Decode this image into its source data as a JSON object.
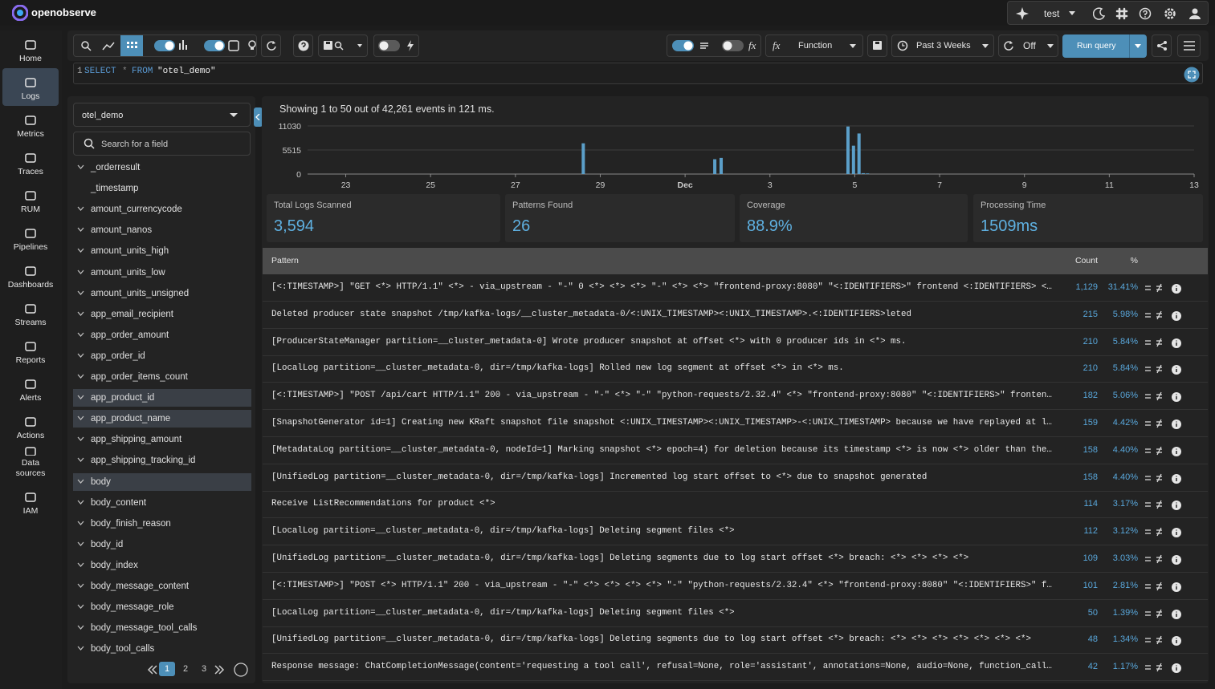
{
  "header": {
    "brand": "openobserve",
    "org": "test"
  },
  "nav": [
    "Home",
    "Logs",
    "Metrics",
    "Traces",
    "RUM",
    "Pipelines",
    "Dashboards",
    "Streams",
    "Reports",
    "Alerts",
    "Actions",
    "Data sources",
    "IAM"
  ],
  "toolbar": {
    "fx": "fx",
    "function": "Function",
    "time_range": "Past 3 Weeks",
    "refresh": "Off",
    "run": "Run query"
  },
  "query": {
    "line_number": 1,
    "tokens": [
      "SELECT",
      "*",
      "FROM",
      "\"otel_demo\""
    ]
  },
  "sidebar": {
    "stream": "otel_demo",
    "search_placeholder": "Search for a field",
    "fields": [
      {
        "name": "_orderresult"
      },
      {
        "name": "_timestamp",
        "expandable": false
      },
      {
        "name": "amount_currencycode"
      },
      {
        "name": "amount_nanos"
      },
      {
        "name": "amount_units_high"
      },
      {
        "name": "amount_units_low"
      },
      {
        "name": "amount_units_unsigned"
      },
      {
        "name": "app_email_recipient"
      },
      {
        "name": "app_order_amount"
      },
      {
        "name": "app_order_id"
      },
      {
        "name": "app_order_items_count"
      },
      {
        "name": "app_product_id",
        "selected": true
      },
      {
        "name": "app_product_name",
        "selected": true
      },
      {
        "name": "app_shipping_amount"
      },
      {
        "name": "app_shipping_tracking_id"
      },
      {
        "name": "body",
        "selected": true
      },
      {
        "name": "body_content"
      },
      {
        "name": "body_finish_reason"
      },
      {
        "name": "body_id"
      },
      {
        "name": "body_index"
      },
      {
        "name": "body_message_content"
      },
      {
        "name": "body_message_role"
      },
      {
        "name": "body_message_tool_calls"
      },
      {
        "name": "body_tool_calls"
      }
    ],
    "pages": [
      1,
      2,
      3
    ],
    "current_page": 1
  },
  "summary": "Showing 1 to 50 out of 42,261 events in 121 ms.",
  "chart_data": {
    "type": "bar",
    "x": [
      28.6,
      31.7,
      31.85,
      34.84,
      34.97,
      35.1,
      35.2,
      35.3
    ],
    "values": [
      7050,
      3400,
      3700,
      10900,
      6500,
      9300,
      200,
      150
    ],
    "color": "#5b9fc9",
    "xlim": [
      22.1,
      43
    ],
    "xticks": [
      23,
      25,
      27,
      29,
      {
        "value": 31,
        "label": "Dec"
      },
      {
        "value": 33,
        "label": "3"
      },
      {
        "value": 35,
        "label": "5"
      },
      {
        "value": 37,
        "label": "7"
      },
      {
        "value": 39,
        "label": "9"
      },
      {
        "value": 41,
        "label": "11"
      },
      {
        "value": 43,
        "label": "13"
      }
    ],
    "ylim": [
      0,
      11030
    ],
    "yticks": [
      0,
      5515,
      11030
    ],
    "grid": true
  },
  "stats": [
    {
      "label": "Total Logs Scanned",
      "value": "3,594"
    },
    {
      "label": "Patterns Found",
      "value": "26"
    },
    {
      "label": "Coverage",
      "value": "88.9%"
    },
    {
      "label": "Processing Time",
      "value": "1509ms"
    }
  ],
  "table": {
    "columns": [
      "Pattern",
      "Count",
      "%"
    ],
    "rows": [
      [
        "[<:TIMESTAMP>] \"GET <*> HTTP/1.1\" <*> - via_upstream - \"-\" 0 <*> <*> <*> \"-\" <*> <*> \"frontend-proxy:8080\" \"<:IDENTIFIERS>\" frontend <:IDENTIFIERS> <…",
        "1,129",
        "31.41%"
      ],
      [
        "Deleted producer state snapshot /tmp/kafka-logs/__cluster_metadata-0/<:UNIX_TIMESTAMP><:UNIX_TIMESTAMP>.<:IDENTIFIERS>leted",
        "215",
        "5.98%"
      ],
      [
        "[ProducerStateManager partition=__cluster_metadata-0] Wrote producer snapshot at offset <*> with 0 producer ids in <*> ms.",
        "210",
        "5.84%"
      ],
      [
        "[LocalLog partition=__cluster_metadata-0, dir=/tmp/kafka-logs] Rolled new log segment at offset <*> in <*> ms.",
        "210",
        "5.84%"
      ],
      [
        "[<:TIMESTAMP>] \"POST /api/cart HTTP/1.1\" 200 - via_upstream - \"-\" <*> \"-\" \"python-requests/2.32.4\" <*> \"frontend-proxy:8080\" \"<:IDENTIFIERS>\" fronten…",
        "182",
        "5.06%"
      ],
      [
        "[SnapshotGenerator id=1] Creating new KRaft snapshot file snapshot <:UNIX_TIMESTAMP><:UNIX_TIMESTAMP>-<:UNIX_TIMESTAMP> because we have replayed at l…",
        "159",
        "4.42%"
      ],
      [
        "[MetadataLog partition=__cluster_metadata-0, nodeId=1] Marking snapshot <*> epoch=4) for deletion because its timestamp <*> is now <*> older than the…",
        "158",
        "4.40%"
      ],
      [
        "[UnifiedLog partition=__cluster_metadata-0, dir=/tmp/kafka-logs] Incremented log start offset to <*> due to snapshot generated",
        "158",
        "4.40%"
      ],
      [
        "Receive ListRecommendations for product <*>",
        "114",
        "3.17%"
      ],
      [
        "[LocalLog partition=__cluster_metadata-0, dir=/tmp/kafka-logs] Deleting segment files <*>",
        "112",
        "3.12%"
      ],
      [
        "[UnifiedLog partition=__cluster_metadata-0, dir=/tmp/kafka-logs] Deleting segments due to log start offset <*> breach: <*> <*> <*> <*>",
        "109",
        "3.03%"
      ],
      [
        "[<:TIMESTAMP>] \"POST <*> HTTP/1.1\" 200 - via_upstream - \"-\" <*> <*> <*> <*> \"-\" \"python-requests/2.32.4\" <*> \"frontend-proxy:8080\" \"<:IDENTIFIERS>\" f…",
        "101",
        "2.81%"
      ],
      [
        "[LocalLog partition=__cluster_metadata-0, dir=/tmp/kafka-logs] Deleting segment files <*>",
        "50",
        "1.39%"
      ],
      [
        "[UnifiedLog partition=__cluster_metadata-0, dir=/tmp/kafka-logs] Deleting segments due to log start offset <*> breach: <*> <*> <*> <*> <*> <*> <*>",
        "48",
        "1.34%"
      ],
      [
        "Response message: ChatCompletionMessage(content='requesting a tool call', refusal=None, role='assistant', annotations=None, audio=None, function_call…",
        "42",
        "1.17%"
      ]
    ]
  }
}
